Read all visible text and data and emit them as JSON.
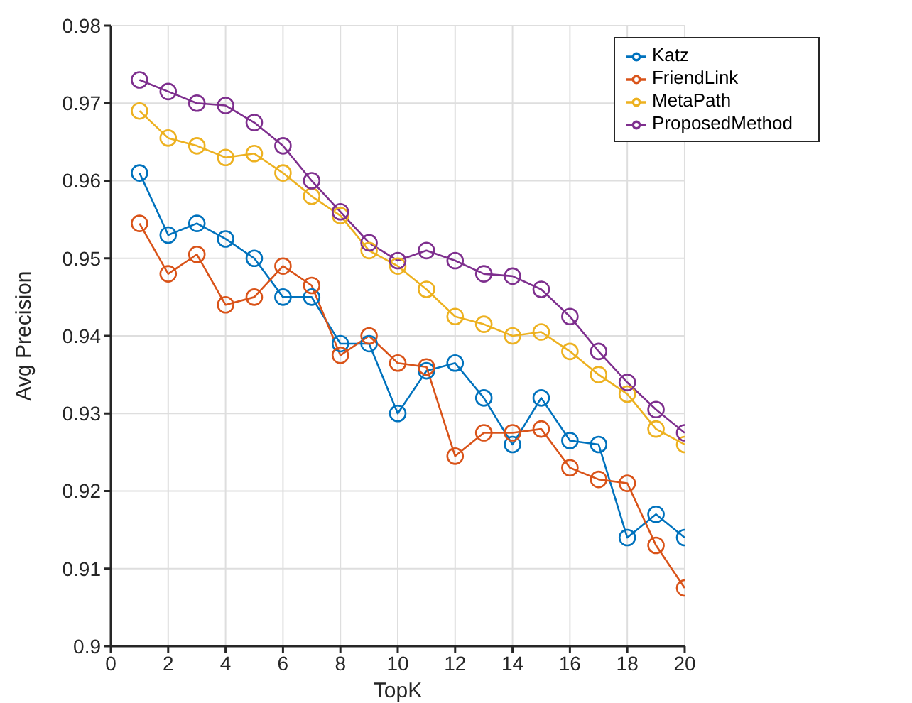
{
  "chart_data": {
    "type": "line",
    "xlabel": "TopK",
    "ylabel": "Avg Precision",
    "x": [
      1,
      2,
      3,
      4,
      5,
      6,
      7,
      8,
      9,
      10,
      11,
      12,
      13,
      14,
      15,
      16,
      17,
      18,
      19,
      20
    ],
    "series": [
      {
        "name": "Katz",
        "color": "#0072bd",
        "values": [
          0.961,
          0.953,
          0.9545,
          0.9525,
          0.95,
          0.945,
          0.945,
          0.939,
          0.939,
          0.93,
          0.9355,
          0.9365,
          0.932,
          0.926,
          0.932,
          0.9265,
          0.926,
          0.914,
          0.917,
          0.914
        ]
      },
      {
        "name": "FriendLink",
        "color": "#d95319",
        "values": [
          0.9545,
          0.948,
          0.9505,
          0.944,
          0.945,
          0.949,
          0.9465,
          0.9375,
          0.94,
          0.9365,
          0.936,
          0.9245,
          0.9275,
          0.9275,
          0.928,
          0.923,
          0.9215,
          0.921,
          0.913,
          0.9075
        ]
      },
      {
        "name": "MetaPath",
        "color": "#edb120",
        "values": [
          0.969,
          0.9655,
          0.9645,
          0.963,
          0.9635,
          0.961,
          0.958,
          0.9555,
          0.951,
          0.949,
          0.946,
          0.9425,
          0.9415,
          0.94,
          0.9405,
          0.938,
          0.935,
          0.9325,
          0.928,
          0.926
        ]
      },
      {
        "name": "ProposedMethod",
        "color": "#7e2f8e",
        "values": [
          0.973,
          0.9715,
          0.97,
          0.9697,
          0.9675,
          0.9645,
          0.96,
          0.956,
          0.952,
          0.9497,
          0.951,
          0.9497,
          0.948,
          0.9477,
          0.946,
          0.9425,
          0.938,
          0.934,
          0.9305,
          0.9275
        ]
      }
    ],
    "xlim": [
      0,
      20
    ],
    "xticks": [
      0,
      2,
      4,
      6,
      8,
      10,
      12,
      14,
      16,
      18,
      20
    ],
    "ylim": [
      0.9,
      0.98
    ],
    "yticks": [
      0.9,
      0.91,
      0.92,
      0.93,
      0.94,
      0.95,
      0.96,
      0.97,
      0.98
    ],
    "grid": true,
    "legend": "top right",
    "marker": "circle",
    "line_style": "solid"
  }
}
